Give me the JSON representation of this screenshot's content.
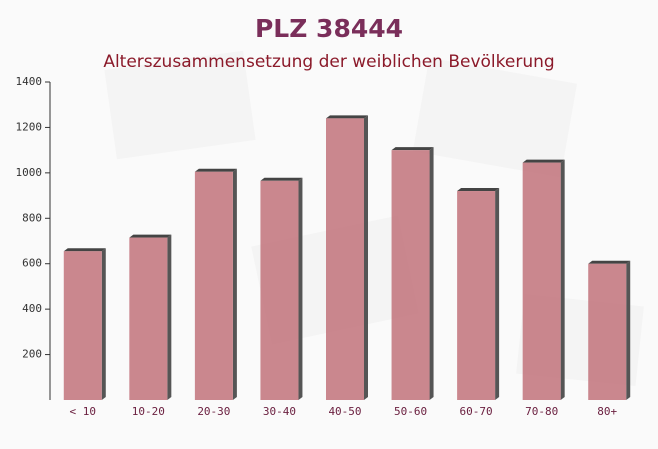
{
  "chart_data": {
    "type": "bar",
    "title": "PLZ 38444",
    "subtitle": "Alterszusammensetzung der weiblichen Bevölkerung",
    "categories": [
      "< 10",
      "10-20",
      "20-30",
      "30-40",
      "40-50",
      "50-60",
      "60-70",
      "70-80",
      "80+"
    ],
    "values": [
      655,
      715,
      1005,
      965,
      1240,
      1100,
      920,
      1045,
      600
    ],
    "color": "#c47a82",
    "ylim": [
      0,
      1400
    ],
    "yticks": [
      200,
      400,
      600,
      800,
      1000,
      1200,
      1400
    ]
  }
}
